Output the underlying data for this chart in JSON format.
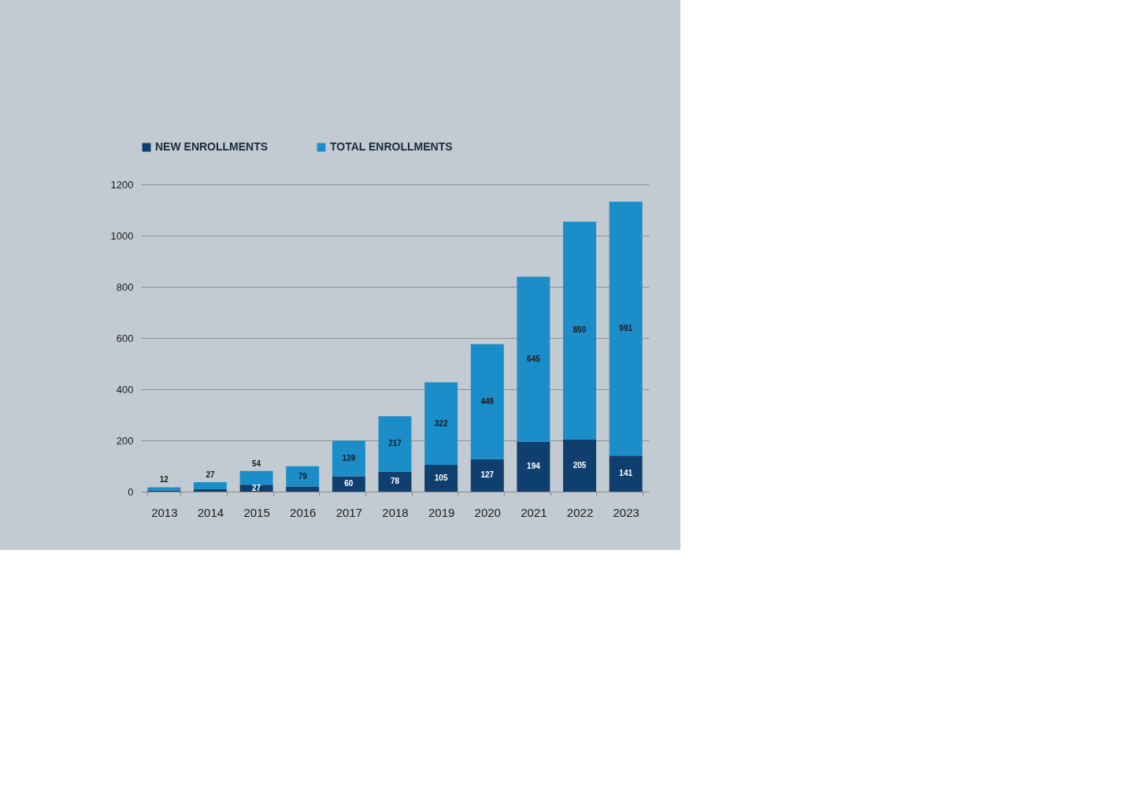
{
  "chart_data": {
    "type": "bar",
    "stacked": true,
    "categories": [
      "2013",
      "2014",
      "2015",
      "2016",
      "2017",
      "2018",
      "2019",
      "2020",
      "2021",
      "2022",
      "2023"
    ],
    "series": [
      {
        "name": "NEW ENROLLMENTS",
        "color": "#0e3f6e",
        "values": [
          5,
          10,
          27,
          20,
          60,
          78,
          105,
          127,
          194,
          205,
          141
        ],
        "value_labels": [
          null,
          null,
          "27",
          null,
          "60",
          "78",
          "105",
          "127",
          "194",
          "205",
          "141"
        ]
      },
      {
        "name": "TOTAL ENROLLMENTS",
        "color": "#1b8ec9",
        "values": [
          12,
          27,
          54,
          79,
          139,
          217,
          322,
          449,
          645,
          850,
          991
        ],
        "value_labels": [
          "12",
          "27",
          "54",
          "79",
          "139",
          "217",
          "322",
          "449",
          "645",
          "850",
          "991"
        ]
      }
    ],
    "ylim": [
      0,
      1200
    ],
    "yticks": [
      0,
      200,
      400,
      600,
      800,
      1000,
      1200
    ],
    "grid": "y",
    "legend": "top"
  }
}
